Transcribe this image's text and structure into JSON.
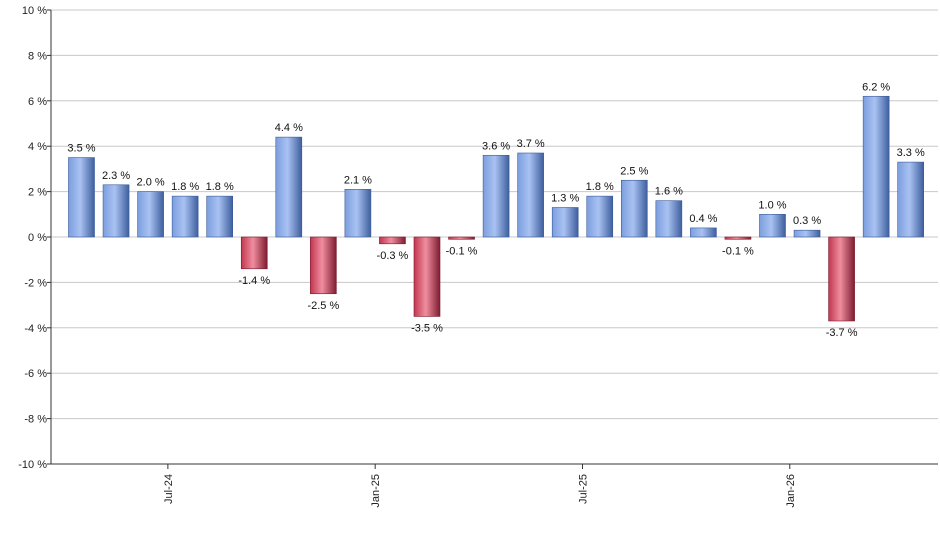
{
  "chart_data": {
    "type": "bar",
    "title": "",
    "xlabel": "",
    "ylabel": "",
    "ylim": [
      -10,
      10
    ],
    "y_ticks": [
      10,
      8,
      6,
      4,
      2,
      0,
      -2,
      -4,
      -6,
      -8,
      -10
    ],
    "y_tick_labels": [
      "10 %",
      "8 %",
      "6 %",
      "4 %",
      "2 %",
      "0 %",
      "-2 %",
      "-4 %",
      "-6 %",
      "-8 %",
      "-10 %"
    ],
    "grid": true,
    "legend": "none",
    "colors": {
      "positive": "#5b86d6",
      "negative": "#c8324f"
    },
    "values": [
      3.5,
      2.3,
      2.0,
      1.8,
      1.8,
      -1.4,
      4.4,
      -2.5,
      2.1,
      -0.3,
      -3.5,
      -0.1,
      3.6,
      3.7,
      1.3,
      1.8,
      2.5,
      1.6,
      0.4,
      -0.1,
      1.0,
      0.3,
      -3.7,
      6.2,
      3.3
    ],
    "value_labels": [
      "3.5 %",
      "2.3 %",
      "2.0 %",
      "1.8 %",
      "1.8 %",
      "-1.4 %",
      "4.4 %",
      "-2.5 %",
      "2.1 %",
      "-0.3 %",
      "-3.5 %",
      "-0.1 %",
      "3.6 %",
      "3.7 %",
      "1.3 %",
      "1.8 %",
      "2.5 %",
      "1.6 %",
      "0.4 %",
      "-0.1 %",
      "1.0 %",
      "0.3 %",
      "-3.7 %",
      "6.2 %",
      "3.3 %"
    ],
    "x_ticks": [
      {
        "label": "Jul-24",
        "after_bar": 2
      },
      {
        "label": "Jan-25",
        "after_bar": 8
      },
      {
        "label": "Jul-25",
        "after_bar": 14
      },
      {
        "label": "Jan-26",
        "after_bar": 20
      }
    ]
  }
}
